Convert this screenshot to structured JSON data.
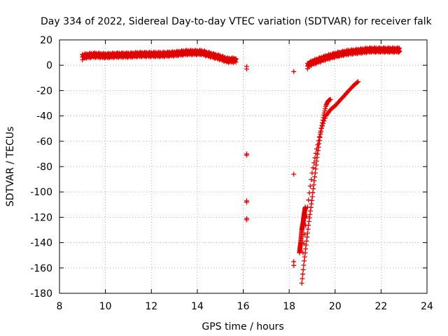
{
  "chart_data": {
    "type": "scatter",
    "title": "Day 334 of 2022, Sidereal Day-to-day VTEC variation (SDTVAR) for receiver falk",
    "xlabel": "GPS time / hours",
    "ylabel": "SDTVAR / TECUs",
    "xlim": [
      8,
      24
    ],
    "ylim": [
      -180,
      20
    ],
    "xticks": [
      8,
      10,
      12,
      14,
      16,
      18,
      20,
      22,
      24
    ],
    "yticks": [
      -180,
      -160,
      -140,
      -120,
      -100,
      -80,
      -60,
      -40,
      -20,
      0,
      20
    ],
    "grid": true,
    "marker": "plus",
    "color": "#e00000",
    "bands": [
      {
        "x": [
          9.0,
          9.5,
          10.0,
          10.5,
          11.0,
          11.5,
          12.0,
          12.5,
          13.0,
          13.5,
          13.8,
          14.2,
          14.6,
          15.0,
          15.3,
          15.7
        ],
        "y": [
          7,
          8,
          7.5,
          8,
          8,
          8.5,
          8.5,
          8.5,
          9,
          10,
          10,
          10,
          8,
          6,
          4,
          4
        ],
        "spread": 2.5
      },
      {
        "x": [
          18.8,
          19.0,
          19.3,
          19.6,
          20.0,
          20.5,
          21.0,
          21.5,
          22.0,
          22.5,
          22.8
        ],
        "y": [
          0,
          2,
          4,
          6,
          8,
          10,
          11,
          12,
          12,
          12,
          12
        ],
        "spread": 2.5
      }
    ],
    "curves": [
      {
        "x": [
          18.55,
          18.65,
          18.75,
          18.85,
          19.0,
          19.1,
          19.2,
          19.3,
          19.4,
          19.5,
          19.6,
          19.7,
          19.8
        ],
        "y": [
          -172,
          -155,
          -140,
          -125,
          -105,
          -90,
          -75,
          -62,
          -50,
          -40,
          -32,
          -28,
          -27
        ]
      },
      {
        "x": [
          18.6,
          18.7,
          18.8,
          18.9,
          19.0,
          19.1,
          19.2,
          19.3,
          19.4,
          19.6,
          19.8,
          20.0,
          20.2,
          20.4,
          20.6,
          20.8,
          21.0
        ],
        "y": [
          -148,
          -130,
          -112,
          -98,
          -85,
          -75,
          -66,
          -58,
          -50,
          -40,
          -35,
          -32,
          -28,
          -24,
          -20,
          -16,
          -13
        ]
      },
      {
        "x": [
          18.45,
          18.5,
          18.55,
          18.6,
          18.65,
          18.7
        ],
        "y": [
          -148,
          -140,
          -130,
          -125,
          -118,
          -112
        ]
      }
    ],
    "points": [
      {
        "x": 16.15,
        "y": -1
      },
      {
        "x": 16.15,
        "y": -3
      },
      {
        "x": 16.15,
        "y": -70
      },
      {
        "x": 16.15,
        "y": -71
      },
      {
        "x": 16.15,
        "y": -107
      },
      {
        "x": 16.15,
        "y": -108
      },
      {
        "x": 16.15,
        "y": -121
      },
      {
        "x": 16.15,
        "y": -122
      },
      {
        "x": 18.2,
        "y": -5
      },
      {
        "x": 18.2,
        "y": -86
      },
      {
        "x": 18.2,
        "y": -155
      },
      {
        "x": 18.2,
        "y": -158
      }
    ]
  }
}
